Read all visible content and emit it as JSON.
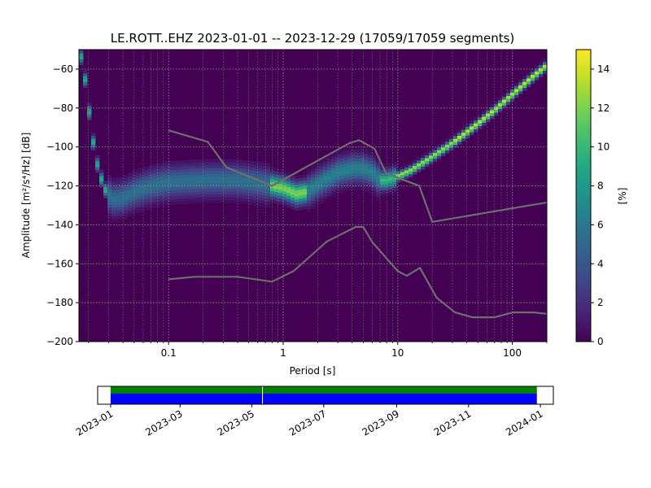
{
  "chart_data": [
    {
      "type": "heatmap",
      "title": "LE.ROTT..EHZ   2023-01-01 -- 2023-12-29  (17059/17059 segments)",
      "xlabel": "Period [s]",
      "ylabel": "Amplitude [m²/s⁴/Hz] [dB]",
      "x_scale": "log",
      "xlim": [
        0.0165,
        200
      ],
      "ylim": [
        -200,
        -50
      ],
      "x_ticks": [
        {
          "value": 0.1,
          "label": "0.1"
        },
        {
          "value": 1,
          "label": "1"
        },
        {
          "value": 10,
          "label": "10"
        },
        {
          "value": 100,
          "label": "100"
        }
      ],
      "y_ticks": [
        {
          "value": -60,
          "label": "−60"
        },
        {
          "value": -80,
          "label": "−80"
        },
        {
          "value": -100,
          "label": "−100"
        },
        {
          "value": -120,
          "label": "−120"
        },
        {
          "value": -140,
          "label": "−140"
        },
        {
          "value": -160,
          "label": "−160"
        },
        {
          "value": -180,
          "label": "−180"
        },
        {
          "value": -200,
          "label": "−200"
        }
      ],
      "grid": true,
      "colormap": "viridis",
      "colorbar": {
        "label": "[%]",
        "range": [
          0,
          15
        ],
        "ticks": [
          {
            "value": 0,
            "label": "0"
          },
          {
            "value": 2,
            "label": "2"
          },
          {
            "value": 4,
            "label": "4"
          },
          {
            "value": 6,
            "label": "6"
          },
          {
            "value": 8,
            "label": "8"
          },
          {
            "value": 10,
            "label": "10"
          },
          {
            "value": 12,
            "label": "12"
          },
          {
            "value": 14,
            "label": "14"
          }
        ]
      },
      "mode_curve": [
        {
          "x": 0.017,
          "y": -52
        },
        {
          "x": 0.019,
          "y": -68
        },
        {
          "x": 0.021,
          "y": -90
        },
        {
          "x": 0.023,
          "y": -105
        },
        {
          "x": 0.025,
          "y": -114
        },
        {
          "x": 0.028,
          "y": -122
        },
        {
          "x": 0.032,
          "y": -127
        },
        {
          "x": 0.04,
          "y": -126
        },
        {
          "x": 0.05,
          "y": -123
        },
        {
          "x": 0.07,
          "y": -120
        },
        {
          "x": 0.1,
          "y": -118
        },
        {
          "x": 0.2,
          "y": -117
        },
        {
          "x": 0.4,
          "y": -117
        },
        {
          "x": 0.7,
          "y": -119
        },
        {
          "x": 1.0,
          "y": -121
        },
        {
          "x": 1.3,
          "y": -124
        },
        {
          "x": 1.6,
          "y": -123
        },
        {
          "x": 2.0,
          "y": -119
        },
        {
          "x": 3.0,
          "y": -113
        },
        {
          "x": 4.0,
          "y": -111
        },
        {
          "x": 5.0,
          "y": -111
        },
        {
          "x": 6.0,
          "y": -113
        },
        {
          "x": 7.0,
          "y": -117
        },
        {
          "x": 8.0,
          "y": -117
        },
        {
          "x": 10,
          "y": -115
        },
        {
          "x": 13,
          "y": -112
        },
        {
          "x": 20,
          "y": -105
        },
        {
          "x": 30,
          "y": -98
        },
        {
          "x": 50,
          "y": -88
        },
        {
          "x": 70,
          "y": -81
        },
        {
          "x": 100,
          "y": -73
        },
        {
          "x": 150,
          "y": -64
        },
        {
          "x": 200,
          "y": -58
        }
      ],
      "noise_models": [
        {
          "series": "upper",
          "points": [
            {
              "x": 0.1,
              "y": -91.5
            },
            {
              "x": 0.22,
              "y": -97.4
            },
            {
              "x": 0.32,
              "y": -110.5
            },
            {
              "x": 0.8,
              "y": -120
            },
            {
              "x": 3.8,
              "y": -98
            },
            {
              "x": 4.6,
              "y": -96.5
            },
            {
              "x": 6.3,
              "y": -101
            },
            {
              "x": 7.9,
              "y": -113.5
            },
            {
              "x": 15.4,
              "y": -120
            },
            {
              "x": 20,
              "y": -138.5
            },
            {
              "x": 200,
              "y": -128.5
            }
          ]
        },
        {
          "series": "lower",
          "points": [
            {
              "x": 0.1,
              "y": -168
            },
            {
              "x": 0.17,
              "y": -166.7
            },
            {
              "x": 0.4,
              "y": -166.7
            },
            {
              "x": 0.8,
              "y": -169.2
            },
            {
              "x": 1.24,
              "y": -163.7
            },
            {
              "x": 2.4,
              "y": -148.6
            },
            {
              "x": 4.3,
              "y": -141.1
            },
            {
              "x": 5.0,
              "y": -141.1
            },
            {
              "x": 6.0,
              "y": -149
            },
            {
              "x": 10,
              "y": -163.8
            },
            {
              "x": 12,
              "y": -166.2
            },
            {
              "x": 15.6,
              "y": -162.1
            },
            {
              "x": 21.9,
              "y": -177.5
            },
            {
              "x": 31.6,
              "y": -185
            },
            {
              "x": 45,
              "y": -187.5
            },
            {
              "x": 70,
              "y": -187.5
            },
            {
              "x": 101,
              "y": -185
            },
            {
              "x": 154,
              "y": -185
            },
            {
              "x": 200,
              "y": -185.7
            }
          ]
        }
      ]
    },
    {
      "type": "bar",
      "xlim": [
        "2022-12-21",
        "2024-01-12"
      ],
      "x_ticks": [
        "2023-01",
        "2023-03",
        "2023-05",
        "2023-07",
        "2023-09",
        "2023-11",
        "2024-01"
      ],
      "series": [
        {
          "segments": [
            {
              "start": "2023-01-01",
              "end": "2023-12-29"
            }
          ],
          "color": "#008000"
        },
        {
          "segments": [
            {
              "start": "2023-01-01",
              "end": "2023-12-29"
            }
          ],
          "color": "#0000ff"
        }
      ],
      "gaps": [
        "2023-05-10"
      ]
    }
  ]
}
